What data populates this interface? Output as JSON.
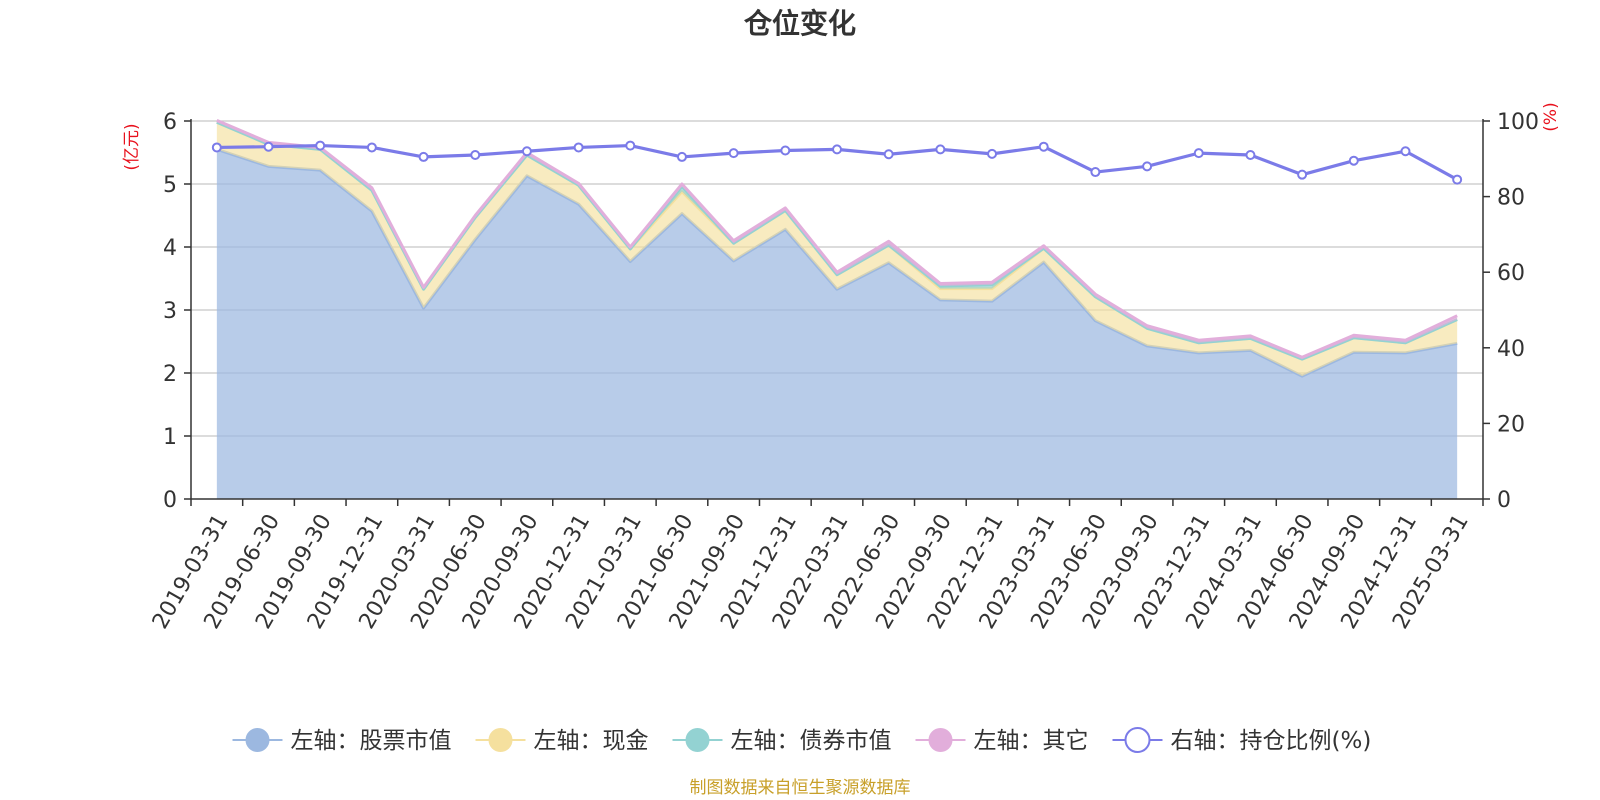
{
  "chart_data": {
    "type": "area",
    "title": "仓位变化",
    "left_axis_unit": "(亿元)",
    "right_axis_unit": "(%)",
    "left_ylim": [
      0,
      6
    ],
    "left_yticks": [
      "0",
      "1",
      "2",
      "3",
      "4",
      "5",
      "6"
    ],
    "right_ylim": [
      0,
      100
    ],
    "right_yticks": [
      "0",
      "20",
      "40",
      "60",
      "80",
      "100"
    ],
    "grid": true,
    "legend_position": "bottom",
    "stacked": true,
    "categories": [
      "2019-03-31",
      "2019-06-30",
      "2019-09-30",
      "2019-12-31",
      "2020-03-31",
      "2020-06-30",
      "2020-09-30",
      "2020-12-31",
      "2021-03-31",
      "2021-06-30",
      "2021-09-30",
      "2021-12-31",
      "2022-03-31",
      "2022-06-30",
      "2022-09-30",
      "2022-12-31",
      "2023-03-31",
      "2023-06-30",
      "2023-09-30",
      "2023-12-31",
      "2024-03-31",
      "2024-06-30",
      "2024-09-30",
      "2024-12-31",
      "2025-03-31"
    ],
    "series": [
      {
        "name": "左轴：股票市值",
        "axis": "left",
        "color": "#9cb8e0",
        "values": [
          5.55,
          5.28,
          5.22,
          4.57,
          3.03,
          4.12,
          5.13,
          4.68,
          3.77,
          4.53,
          3.78,
          4.28,
          3.33,
          3.75,
          3.16,
          3.14,
          3.76,
          2.83,
          2.43,
          2.32,
          2.36,
          1.95,
          2.33,
          2.32,
          2.47
        ]
      },
      {
        "name": "左轴：现金",
        "axis": "left",
        "color": "#f5e09e",
        "values": [
          0.43,
          0.35,
          0.33,
          0.33,
          0.3,
          0.35,
          0.33,
          0.3,
          0.2,
          0.35,
          0.28,
          0.3,
          0.23,
          0.28,
          0.18,
          0.2,
          0.22,
          0.38,
          0.28,
          0.16,
          0.19,
          0.27,
          0.23,
          0.16,
          0.38
        ]
      },
      {
        "name": "左轴：债券市值",
        "axis": "left",
        "color": "#93d2d2",
        "values": [
          0,
          0,
          0,
          0,
          0,
          0,
          0,
          0,
          0,
          0.08,
          0,
          0,
          0,
          0,
          0.04,
          0.06,
          0,
          0,
          0,
          0,
          0,
          0,
          0,
          0,
          0
        ]
      },
      {
        "name": "左轴：其它",
        "axis": "left",
        "color": "#e2aedb",
        "values": [
          0.03,
          0.03,
          0.03,
          0.04,
          0.03,
          0.03,
          0.04,
          0.03,
          0.03,
          0.04,
          0.04,
          0.04,
          0.04,
          0.06,
          0.04,
          0.04,
          0.04,
          0.04,
          0.04,
          0.04,
          0.04,
          0.03,
          0.04,
          0.04,
          0.06
        ]
      },
      {
        "name": "右轴：持仓比例(%)",
        "axis": "right",
        "color": "#7b7be8",
        "values": [
          93.0,
          93.2,
          93.5,
          93.0,
          90.5,
          91.0,
          92.0,
          93.0,
          93.5,
          90.5,
          91.5,
          92.2,
          92.5,
          91.2,
          92.5,
          91.3,
          93.2,
          86.5,
          88.0,
          91.5,
          91.0,
          85.8,
          89.5,
          92.0,
          84.5
        ]
      }
    ],
    "source_note": "制图数据来自恒生聚源数据库"
  }
}
